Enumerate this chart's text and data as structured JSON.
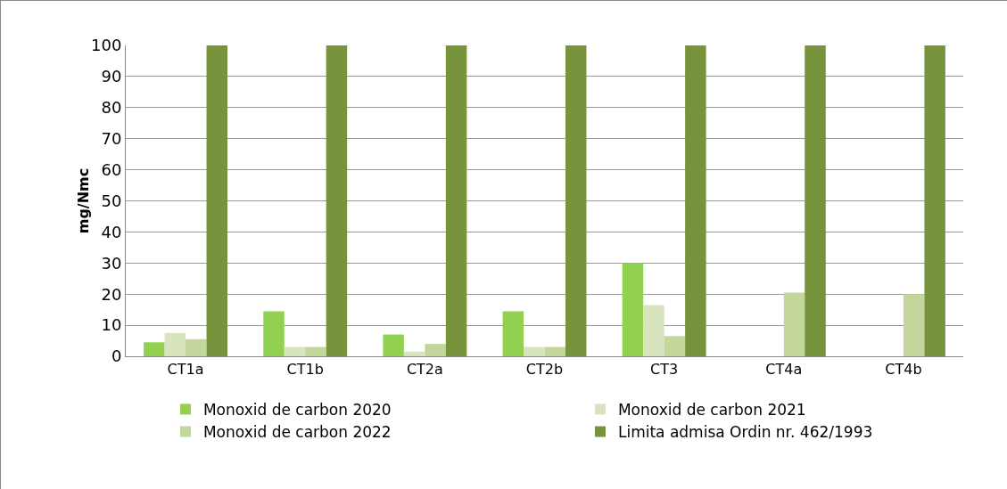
{
  "chart_data": {
    "type": "bar",
    "ylabel": "mg/Nmc",
    "categories": [
      "CT1a",
      "CT1b",
      "CT2a",
      "CT2b",
      "CT3",
      "CT4a",
      "CT4b"
    ],
    "series": [
      {
        "name": "Monoxid de carbon 2020",
        "color": "#92d050",
        "values": [
          4.5,
          14.5,
          7,
          14.5,
          30,
          null,
          null
        ]
      },
      {
        "name": "Monoxid de carbon 2021",
        "color": "#d7e4bd",
        "values": [
          7.5,
          3,
          1.5,
          3,
          16.5,
          null,
          null
        ]
      },
      {
        "name": "Monoxid de carbon 2022",
        "color": "#c3d69b",
        "values": [
          5.5,
          3,
          4,
          3,
          6.5,
          20.5,
          20
        ]
      },
      {
        "name": "Limita admisa Ordin nr. 462/1993",
        "color": "#77933c",
        "values": [
          100,
          100,
          100,
          100,
          100,
          100,
          100
        ]
      }
    ],
    "ylim": [
      0,
      100
    ],
    "yticks": [
      0,
      10,
      20,
      30,
      40,
      50,
      60,
      70,
      80,
      90,
      100
    ],
    "grid": "y",
    "legend": "bottom"
  }
}
